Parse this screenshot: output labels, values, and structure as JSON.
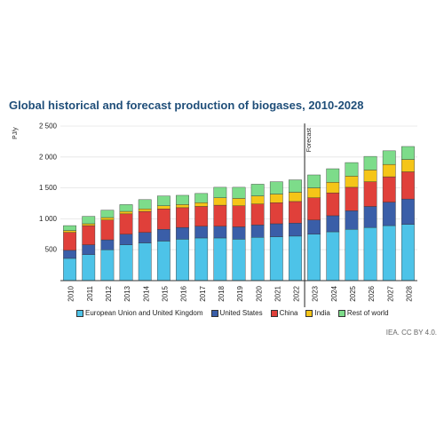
{
  "title": "Global historical and forecast production of biogases, 2010-2028",
  "source": "IEA. CC BY 4.0.",
  "chart_data": {
    "type": "bar",
    "stacked": true,
    "ylabel": "PJ/y",
    "ylim": [
      0,
      2500
    ],
    "yticks": [
      500,
      1000,
      1500,
      2000,
      2500
    ],
    "ytick_labels": [
      "500",
      "1 000",
      "1 500",
      "2 000",
      "2 500"
    ],
    "grid": true,
    "legend_position": "bottom",
    "forecast_label": "Forecast",
    "forecast_start": "2023",
    "categories": [
      "2010",
      "2011",
      "2012",
      "2013",
      "2014",
      "2015",
      "2016",
      "2017",
      "2018",
      "2019",
      "2020",
      "2021",
      "2022",
      "2023",
      "2024",
      "2025",
      "2026",
      "2027",
      "2028"
    ],
    "series": [
      {
        "name": "European Union and United Kingdom",
        "color": "#4dc3e8",
        "values": [
          360,
          420,
          500,
          580,
          610,
          640,
          670,
          690,
          690,
          670,
          700,
          710,
          720,
          750,
          790,
          830,
          860,
          890,
          910
        ]
      },
      {
        "name": "United States",
        "color": "#3a5ea8",
        "values": [
          130,
          160,
          160,
          170,
          170,
          190,
          190,
          190,
          190,
          200,
          200,
          210,
          210,
          230,
          260,
          300,
          340,
          380,
          410
        ]
      },
      {
        "name": "China",
        "color": "#e0403a",
        "values": [
          290,
          310,
          320,
          330,
          340,
          330,
          320,
          320,
          340,
          340,
          340,
          340,
          350,
          360,
          370,
          380,
          400,
          410,
          440
        ]
      },
      {
        "name": "India",
        "color": "#f5c518",
        "values": [
          30,
          30,
          40,
          40,
          40,
          50,
          50,
          60,
          120,
          120,
          130,
          140,
          150,
          160,
          170,
          180,
          190,
          200,
          200
        ]
      },
      {
        "name": "Rest of world",
        "color": "#7ddc8a",
        "values": [
          80,
          120,
          120,
          110,
          150,
          160,
          150,
          150,
          170,
          180,
          190,
          200,
          200,
          210,
          220,
          220,
          220,
          220,
          210
        ]
      }
    ]
  }
}
